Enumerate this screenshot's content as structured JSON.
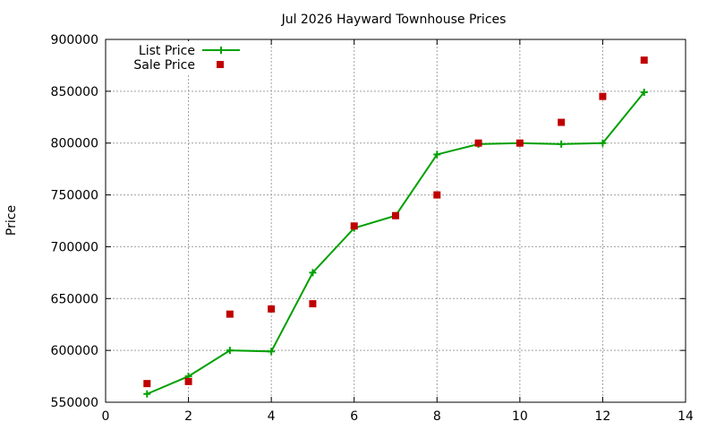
{
  "chart_data": {
    "type": "line",
    "title": "Jul 2026 Hayward Townhouse Prices",
    "xlabel": "",
    "ylabel": "Price",
    "xlim": [
      0,
      14
    ],
    "ylim": [
      550000,
      900000
    ],
    "x_ticks": [
      0,
      2,
      4,
      6,
      8,
      10,
      12,
      14
    ],
    "y_ticks": [
      550000,
      600000,
      650000,
      700000,
      750000,
      800000,
      850000,
      900000
    ],
    "grid": true,
    "legend_position": "top-left",
    "series": [
      {
        "name": "List Price",
        "style": "line-with-plus-markers",
        "color": "#00a000",
        "x": [
          1,
          2,
          3,
          4,
          5,
          6,
          7,
          8,
          9,
          10,
          11,
          12,
          13
        ],
        "y": [
          558000,
          575000,
          600000,
          599000,
          675000,
          718000,
          730000,
          789000,
          799000,
          800000,
          799000,
          800000,
          849000
        ]
      },
      {
        "name": "Sale Price",
        "style": "square-markers",
        "color": "#c00000",
        "x": [
          1,
          2,
          3,
          4,
          5,
          6,
          7,
          8,
          9,
          10,
          11,
          12,
          13
        ],
        "y": [
          568000,
          570000,
          635000,
          640000,
          645000,
          720000,
          730000,
          750000,
          800000,
          800000,
          820000,
          845000,
          880000
        ]
      }
    ]
  }
}
